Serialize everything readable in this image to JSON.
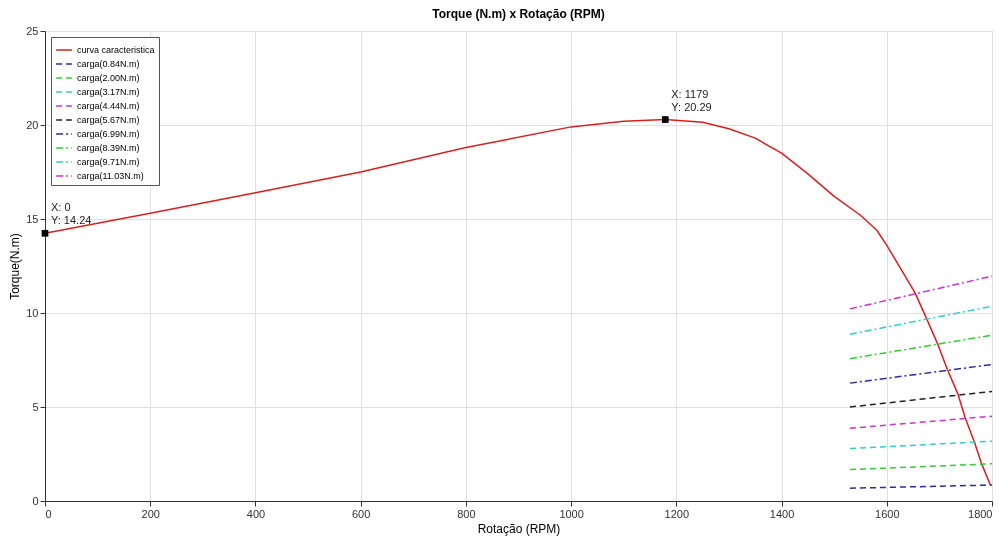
{
  "chart_data": {
    "type": "line",
    "title": "Torque (N.m) x Rotação (RPM)",
    "xlabel": "Rotação (RPM)",
    "ylabel": "Torque(N.m)",
    "xlim": [
      0,
      1800
    ],
    "xticks": [
      0,
      200,
      400,
      600,
      800,
      1000,
      1200,
      1400,
      1600,
      1800
    ],
    "ylim": [
      0,
      25
    ],
    "yticks": [
      0,
      5,
      10,
      15,
      20,
      25
    ],
    "grid": true,
    "legend": "top left",
    "marker": "none",
    "series": [
      {
        "name": "curva caracteristica",
        "color": "#d62020",
        "line_style": "solid",
        "x": [
          0,
          200,
          400,
          600,
          800,
          1000,
          1100,
          1179,
          1250,
          1300,
          1350,
          1400,
          1450,
          1500,
          1550,
          1581,
          1600,
          1654,
          1675,
          1696,
          1715,
          1735,
          1749,
          1767,
          1780,
          1797
        ],
        "values": [
          14.24,
          15.3,
          16.4,
          17.5,
          18.8,
          19.9,
          20.2,
          20.29,
          20.15,
          19.8,
          19.3,
          18.5,
          17.4,
          16.2,
          15.2,
          14.4,
          13.6,
          11.06,
          9.74,
          8.4,
          7.01,
          5.7,
          4.43,
          3.1,
          2.0,
          0.84
        ]
      },
      {
        "name": "carga(0.84N.m)",
        "color": "#2b2b9c",
        "line_style": "dashed",
        "x": [
          1530,
          1800
        ],
        "values": [
          0.68,
          0.85
        ]
      },
      {
        "name": "carga(2.00N.m)",
        "color": "#33cc33",
        "line_style": "dashed",
        "x": [
          1530,
          1800
        ],
        "values": [
          1.67,
          1.98
        ]
      },
      {
        "name": "carga(3.17N.m)",
        "color": "#33cccc",
        "line_style": "dashed",
        "x": [
          1530,
          1800
        ],
        "values": [
          2.79,
          3.18
        ]
      },
      {
        "name": "carga(4.44N.m)",
        "color": "#cc33cc",
        "line_style": "dashed",
        "x": [
          1530,
          1800
        ],
        "values": [
          3.87,
          4.51
        ]
      },
      {
        "name": "carga(5.67N.m)",
        "color": "#222222",
        "line_style": "dashed",
        "x": [
          1530,
          1800
        ],
        "values": [
          5.0,
          5.83
        ]
      },
      {
        "name": "carga(6.99N.m)",
        "color": "#2b2b9c",
        "line_style": "dashdot",
        "x": [
          1530,
          1800
        ],
        "values": [
          6.27,
          7.26
        ]
      },
      {
        "name": "carga(8.39N.m)",
        "color": "#33cc33",
        "line_style": "dashdot",
        "x": [
          1530,
          1800
        ],
        "values": [
          7.57,
          8.82
        ]
      },
      {
        "name": "carga(9.71N.m)",
        "color": "#33cccc",
        "line_style": "dashdot",
        "x": [
          1530,
          1800
        ],
        "values": [
          8.87,
          10.36
        ]
      },
      {
        "name": "carga(11.03N.m)",
        "color": "#cc33cc",
        "line_style": "dashdot",
        "x": [
          1530,
          1800
        ],
        "values": [
          10.22,
          11.96
        ]
      }
    ],
    "annotations": [
      {
        "text": "X: 0\nY: 14.24",
        "x": 0,
        "y": 14.24
      },
      {
        "text": "X: 1179\nY: 20.29",
        "x": 1179,
        "y": 20.29
      }
    ]
  }
}
